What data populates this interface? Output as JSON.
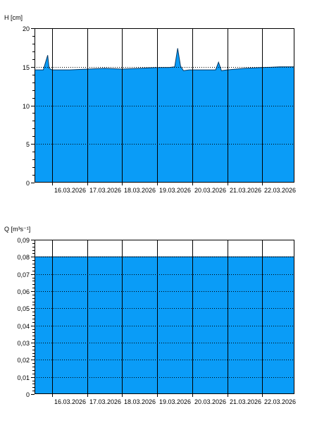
{
  "colors": {
    "fill": "#0a9cf7",
    "outline": "#083a64",
    "grid": "#000000",
    "axis": "#000000",
    "background": "#ffffff"
  },
  "chart_data": [
    {
      "type": "area",
      "ylabel": "H [cm]",
      "ylim": [
        0,
        20
      ],
      "yticks": [
        0,
        5,
        10,
        15,
        20
      ],
      "ytick_labels": [
        "0",
        "5",
        "10",
        "15",
        "20"
      ],
      "xlim": [
        "2026-03-15T12:00",
        "2026-03-22T22:00"
      ],
      "xticks": [
        "2026-03-16",
        "2026-03-17",
        "2026-03-18",
        "2026-03-19",
        "2026-03-20",
        "2026-03-21",
        "2026-03-22"
      ],
      "xtick_labels": [
        "16.03.2026",
        "17.03.2026",
        "18.03.2026",
        "19.03.2026",
        "20.03.2026",
        "21.03.2026",
        "22.03.2026"
      ],
      "hgrid": [
        5,
        10,
        15
      ],
      "x": [
        "2026-03-15T12:00",
        "2026-03-15T18:00",
        "2026-03-15T21:00",
        "2026-03-15T22:00",
        "2026-03-16T00:00",
        "2026-03-16T03:00",
        "2026-03-16T12:00",
        "2026-03-17T00:00",
        "2026-03-17T12:00",
        "2026-03-18T00:00",
        "2026-03-18T12:00",
        "2026-03-19T00:00",
        "2026-03-19T08:00",
        "2026-03-19T12:00",
        "2026-03-19T14:00",
        "2026-03-19T16:00",
        "2026-03-19T18:00",
        "2026-03-19T22:00",
        "2026-03-20T06:00",
        "2026-03-20T12:00",
        "2026-03-20T16:00",
        "2026-03-20T18:00",
        "2026-03-20T20:00",
        "2026-03-21T00:00",
        "2026-03-21T12:00",
        "2026-03-22T00:00",
        "2026-03-22T12:00",
        "2026-03-22T22:00"
      ],
      "y": [
        14.6,
        14.6,
        16.5,
        14.8,
        14.6,
        14.6,
        14.6,
        14.7,
        14.8,
        14.7,
        14.8,
        14.9,
        14.9,
        15.0,
        17.4,
        15.1,
        14.5,
        14.6,
        14.6,
        14.6,
        14.6,
        15.6,
        14.5,
        14.6,
        14.8,
        14.9,
        15.0,
        15.0
      ]
    },
    {
      "type": "area",
      "ylabel": "Q [m³s⁻¹]",
      "ylim": [
        0,
        0.09
      ],
      "yticks": [
        0,
        0.01,
        0.02,
        0.03,
        0.04,
        0.05,
        0.06,
        0.07,
        0.08,
        0.09
      ],
      "ytick_labels": [
        "0",
        "0,01",
        "0,02",
        "0,03",
        "0,04",
        "0,05",
        "0,06",
        "0,07",
        "0,08",
        "0,09"
      ],
      "xlim": [
        "2026-03-15T12:00",
        "2026-03-22T22:00"
      ],
      "xticks": [
        "2026-03-16",
        "2026-03-17",
        "2026-03-18",
        "2026-03-19",
        "2026-03-20",
        "2026-03-21",
        "2026-03-22"
      ],
      "xtick_labels": [
        "16.03.2026",
        "17.03.2026",
        "18.03.2026",
        "19.03.2026",
        "20.03.2026",
        "21.03.2026",
        "22.03.2026"
      ],
      "hgrid": [
        0.01,
        0.02,
        0.03,
        0.04,
        0.05,
        0.06,
        0.07,
        0.08
      ],
      "x": [
        "2026-03-15T12:00",
        "2026-03-22T22:00"
      ],
      "y": [
        0.08,
        0.08
      ]
    }
  ]
}
